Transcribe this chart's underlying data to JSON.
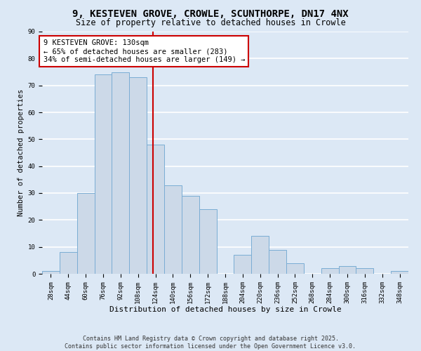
{
  "title": "9, KESTEVEN GROVE, CROWLE, SCUNTHORPE, DN17 4NX",
  "subtitle": "Size of property relative to detached houses in Crowle",
  "xlabel": "Distribution of detached houses by size in Crowle",
  "ylabel": "Number of detached properties",
  "bar_color": "#ccd9e8",
  "bar_edge_color": "#7aadd4",
  "background_color": "#dce8f5",
  "grid_color": "#ffffff",
  "bins": [
    28,
    44,
    60,
    76,
    92,
    108,
    124,
    140,
    156,
    172,
    188,
    204,
    220,
    236,
    252,
    268,
    284,
    300,
    316,
    332,
    348,
    364
  ],
  "counts": [
    1,
    8,
    30,
    74,
    75,
    73,
    48,
    33,
    29,
    24,
    0,
    7,
    14,
    9,
    4,
    0,
    2,
    3,
    2,
    0,
    1
  ],
  "property_size": 130,
  "annotation_title": "9 KESTEVEN GROVE: 130sqm",
  "annotation_line1": "← 65% of detached houses are smaller (283)",
  "annotation_line2": "34% of semi-detached houses are larger (149) →",
  "vline_color": "#cc0000",
  "annotation_box_color": "#cc0000",
  "footer_line1": "Contains HM Land Registry data © Crown copyright and database right 2025.",
  "footer_line2": "Contains public sector information licensed under the Open Government Licence v3.0.",
  "ylim": [
    0,
    90
  ],
  "title_fontsize": 10,
  "subtitle_fontsize": 8.5,
  "xlabel_fontsize": 8,
  "ylabel_fontsize": 7.5,
  "tick_fontsize": 6.5,
  "annotation_fontsize": 7.5,
  "footer_fontsize": 6
}
